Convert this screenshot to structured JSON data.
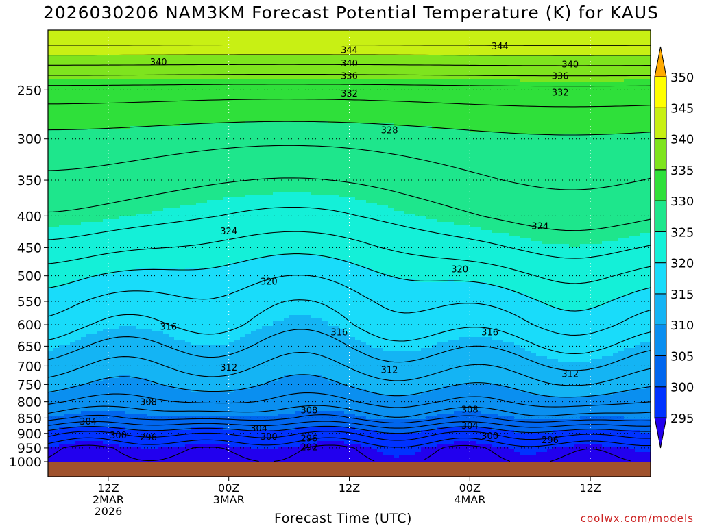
{
  "title": "2026030206 NAM3KM Forecast Potential Temperature (K) for KAUS",
  "credit": "coolwx.com/models",
  "chart_data": {
    "type": "heatmap",
    "title": "2026030206 NAM3KM Forecast Potential Temperature (K) for KAUS",
    "xlabel": "Forecast Time (UTC)",
    "ylabel": "",
    "y_scale": "log",
    "y_reversed": true,
    "ylim": [
      1000,
      200
    ],
    "y_ticks": [
      250,
      300,
      350,
      400,
      450,
      500,
      550,
      600,
      650,
      700,
      750,
      800,
      850,
      900,
      950,
      1000
    ],
    "xlim_hours": [
      6,
      66
    ],
    "x_ticks": [
      {
        "hour": 12,
        "labels": [
          "12Z",
          "2MAR",
          "2026"
        ]
      },
      {
        "hour": 24,
        "labels": [
          "00Z",
          "3MAR"
        ]
      },
      {
        "hour": 36,
        "labels": [
          "12Z"
        ]
      },
      {
        "hour": 48,
        "labels": [
          "00Z",
          "4MAR"
        ]
      },
      {
        "hour": 60,
        "labels": [
          "12Z"
        ]
      }
    ],
    "grid": true,
    "colorbar": {
      "levels": [
        295,
        300,
        305,
        310,
        315,
        320,
        325,
        330,
        335,
        340,
        345,
        350
      ],
      "colors": [
        "#2200ee",
        "#0033ff",
        "#0066ee",
        "#0a8ff0",
        "#14b4f4",
        "#19dcfa",
        "#14f0d8",
        "#1ee68c",
        "#2fe03a",
        "#7ee41e",
        "#c8f014",
        "#ffff00",
        "#ffaa00"
      ]
    },
    "ground_color": "#a0522d",
    "contour_interval": 4,
    "profile_pressures": [
      1000,
      950,
      900,
      850,
      800,
      750,
      700,
      650,
      600,
      550,
      500,
      450,
      400,
      350,
      300,
      250,
      200
    ],
    "profile_theta": [
      293.5,
      294.5,
      298.5,
      304.5,
      308.0,
      310.5,
      312.5,
      314.5,
      316.5,
      318.0,
      320.0,
      322.5,
      325.0,
      327.0,
      329.0,
      333.0,
      345.0
    ],
    "contour_labels": [
      {
        "value": "344",
        "hour": 36,
        "p": 215
      },
      {
        "value": "344",
        "hour": 51,
        "p": 212
      },
      {
        "value": "340",
        "hour": 17,
        "p": 225
      },
      {
        "value": "340",
        "hour": 36,
        "p": 226
      },
      {
        "value": "340",
        "hour": 58,
        "p": 227
      },
      {
        "value": "336",
        "hour": 36,
        "p": 237
      },
      {
        "value": "336",
        "hour": 57,
        "p": 237
      },
      {
        "value": "332",
        "hour": 36,
        "p": 253
      },
      {
        "value": "332",
        "hour": 57,
        "p": 252
      },
      {
        "value": "328",
        "hour": 40,
        "p": 290
      },
      {
        "value": "324",
        "hour": 24,
        "p": 423
      },
      {
        "value": "324",
        "hour": 55,
        "p": 415
      },
      {
        "value": "320",
        "hour": 28,
        "p": 510
      },
      {
        "value": "320",
        "hour": 47,
        "p": 487
      },
      {
        "value": "316",
        "hour": 18,
        "p": 604
      },
      {
        "value": "316",
        "hour": 35,
        "p": 616
      },
      {
        "value": "316",
        "hour": 50,
        "p": 616
      },
      {
        "value": "312",
        "hour": 24,
        "p": 703
      },
      {
        "value": "312",
        "hour": 40,
        "p": 709
      },
      {
        "value": "312",
        "hour": 58,
        "p": 720
      },
      {
        "value": "308",
        "hour": 16,
        "p": 800
      },
      {
        "value": "308",
        "hour": 32,
        "p": 825
      },
      {
        "value": "308",
        "hour": 48,
        "p": 822
      },
      {
        "value": "304",
        "hour": 10,
        "p": 860
      },
      {
        "value": "304",
        "hour": 27,
        "p": 882
      },
      {
        "value": "304",
        "hour": 48,
        "p": 873
      },
      {
        "value": "300",
        "hour": 13,
        "p": 905
      },
      {
        "value": "300",
        "hour": 28,
        "p": 910
      },
      {
        "value": "300",
        "hour": 50,
        "p": 907
      },
      {
        "value": "296",
        "hour": 16,
        "p": 912
      },
      {
        "value": "296",
        "hour": 32,
        "p": 916
      },
      {
        "value": "296",
        "hour": 56,
        "p": 922
      },
      {
        "value": "292",
        "hour": 32,
        "p": 947
      }
    ]
  }
}
